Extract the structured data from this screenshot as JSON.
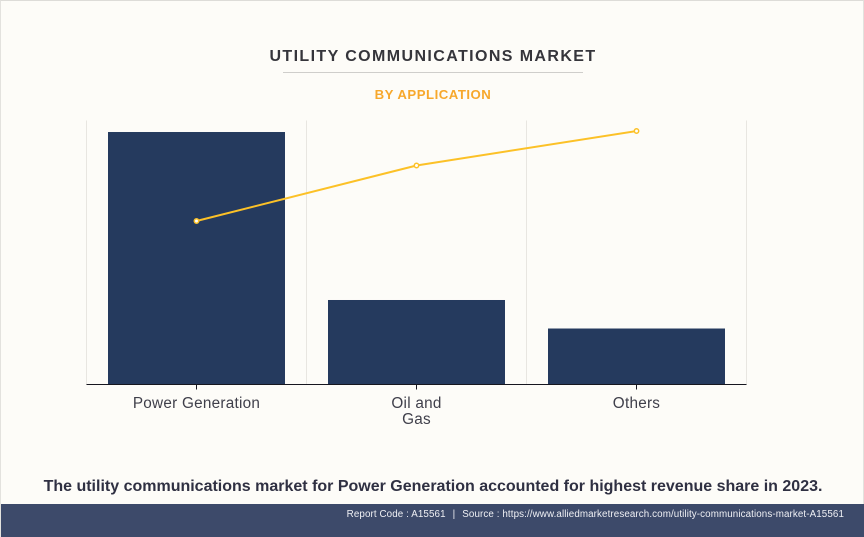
{
  "page": {
    "background_color": "#fdfcf8"
  },
  "header": {
    "title": "UTILITY COMMUNICATIONS MARKET",
    "subtitle": "BY APPLICATION",
    "subtitle_color": "#f7a82c",
    "title_color": "#35353b"
  },
  "chart_data": {
    "type": "bar",
    "title": "UTILITY COMMUNICATIONS MARKET",
    "subtitle": "BY APPLICATION",
    "categories": [
      "Power Generation",
      "Oil and Gas",
      "Others"
    ],
    "xaxis_labels": [
      [
        "Power Generation"
      ],
      [
        "Oil and",
        "Gas"
      ],
      [
        "Others"
      ]
    ],
    "series": [
      {
        "name": "market-share-bars",
        "type": "bar",
        "values": [
          0.9564,
          0.3201,
          0.2121
        ]
      },
      {
        "name": "trend-line",
        "type": "line",
        "values": [
          0.6193,
          0.8295,
          0.9602
        ]
      }
    ],
    "value_axis": {
      "labels_visible": false,
      "range": [
        0,
        1
      ],
      "note": "no numeric axis labels shown; values are relative heights"
    },
    "grid": "vertical category separators only",
    "legend": "none",
    "bar_color": "#253a5e",
    "line_color": "#fcc127",
    "marker_style": "circle, white fill, yellow stroke",
    "axis_color": "#16161f",
    "grid_color": "#e8e6e1"
  },
  "statement": "The utility communications market for Power Generation accounted for highest revenue share in 2023.",
  "footer": {
    "report_code": "Report Code : A15561",
    "separator": "|",
    "source": "Source : https://www.alliedmarketresearch.com/utility-communications-market-A15561",
    "bar_color": "#3d4a6a",
    "text_color": "#eff0f4"
  }
}
